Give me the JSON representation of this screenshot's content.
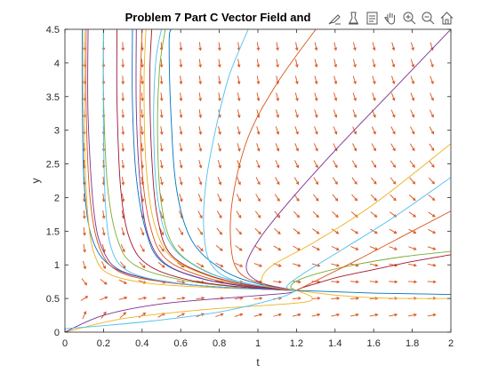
{
  "toolbar": {
    "buttons": [
      {
        "name": "brush-icon"
      },
      {
        "name": "datatip-icon"
      },
      {
        "name": "restore-view-icon"
      },
      {
        "name": "pan-hand-icon"
      },
      {
        "name": "zoom-in-icon"
      },
      {
        "name": "zoom-out-icon"
      },
      {
        "name": "home-icon"
      }
    ]
  },
  "chart_data": {
    "type": "line",
    "title": "Problem 7 Part C Vector Field and",
    "xlabel": "t",
    "ylabel": "y",
    "xlim": [
      0,
      2
    ],
    "ylim": [
      0,
      4.5
    ],
    "xticks": [
      0,
      0.2,
      0.4,
      0.6,
      0.8,
      1,
      1.2,
      1.4,
      1.6,
      1.8,
      2
    ],
    "yticks": [
      0,
      0.5,
      1,
      1.5,
      2,
      2.5,
      3,
      3.5,
      4,
      4.5
    ],
    "grid": false,
    "box": true,
    "vector_field": {
      "color": "#D95319",
      "t_samples": [
        0,
        0.1,
        0.2,
        0.3,
        0.4,
        0.5,
        0.6,
        0.7,
        0.8,
        0.9,
        1.0,
        1.1,
        1.2,
        1.3,
        1.4,
        1.5,
        1.6,
        1.7,
        1.8,
        1.9,
        2.0
      ],
      "y_samples": [
        0,
        0.25,
        0.5,
        0.75,
        1.0,
        1.25,
        1.5,
        1.75,
        2.0,
        2.25,
        2.5,
        2.75,
        3.0,
        3.25,
        3.5,
        3.75,
        4.0,
        4.25,
        4.5
      ]
    },
    "equilibrium_curve": {
      "t0": 1.2,
      "y0": 0.62
    },
    "series": [
      {
        "color": "#0072BD",
        "t": [
          0.09,
          0.09,
          0.1,
          0.14,
          0.24,
          0.45,
          0.75,
          1.2
        ],
        "y": [
          4.5,
          3.5,
          2.2,
          1.4,
          0.98,
          0.78,
          0.68,
          0.62
        ]
      },
      {
        "color": "#D95319",
        "t": [
          0.11,
          0.11,
          0.13,
          0.18,
          0.28,
          0.5,
          0.8,
          1.2
        ],
        "y": [
          4.5,
          3.3,
          2.0,
          1.25,
          0.9,
          0.75,
          0.67,
          0.62
        ]
      },
      {
        "color": "#EDB120",
        "t": [
          0.1,
          0.1,
          0.12,
          0.16,
          0.24,
          0.45,
          0.78,
          1.2
        ],
        "y": [
          4.5,
          3.0,
          1.7,
          1.1,
          0.85,
          0.72,
          0.66,
          0.62
        ]
      },
      {
        "color": "#7E2F8E",
        "t": [
          0.12,
          0.12,
          0.15,
          0.2,
          0.3,
          0.55,
          0.85,
          1.2
        ],
        "y": [
          4.5,
          3.2,
          1.8,
          1.2,
          0.9,
          0.74,
          0.66,
          0.62
        ]
      },
      {
        "color": "#77AC30",
        "t": [
          0.2,
          0.2,
          0.22,
          0.27,
          0.36,
          0.6,
          0.9,
          1.2
        ],
        "y": [
          4.5,
          3.5,
          2.2,
          1.4,
          1.0,
          0.78,
          0.67,
          0.62
        ]
      },
      {
        "color": "#4DBEEE",
        "t": [
          0.2,
          0.2,
          0.21,
          0.24,
          0.32,
          0.52,
          0.85,
          1.2
        ],
        "y": [
          4.5,
          3.0,
          1.9,
          1.25,
          0.92,
          0.75,
          0.66,
          0.62
        ]
      },
      {
        "color": "#A2142F",
        "t": [
          0.27,
          0.27,
          0.29,
          0.34,
          0.44,
          0.65,
          0.92,
          1.2
        ],
        "y": [
          4.5,
          3.4,
          2.1,
          1.35,
          0.98,
          0.77,
          0.67,
          0.62
        ]
      },
      {
        "color": "#0072BD",
        "t": [
          0.35,
          0.35,
          0.37,
          0.42,
          0.5,
          0.7,
          0.95,
          1.2
        ],
        "y": [
          4.5,
          3.4,
          2.3,
          1.5,
          1.05,
          0.8,
          0.68,
          0.62
        ]
      },
      {
        "color": "#D95319",
        "t": [
          0.4,
          0.39,
          0.4,
          0.44,
          0.52,
          0.72,
          0.97,
          1.2
        ],
        "y": [
          4.5,
          3.5,
          2.4,
          1.6,
          1.1,
          0.82,
          0.68,
          0.62
        ]
      },
      {
        "color": "#EDB120",
        "t": [
          0.42,
          0.41,
          0.42,
          0.46,
          0.55,
          0.75,
          0.98,
          1.2
        ],
        "y": [
          4.5,
          3.7,
          2.5,
          1.65,
          1.12,
          0.83,
          0.69,
          0.62
        ]
      },
      {
        "color": "#7E2F8E",
        "t": [
          0.37,
          0.37,
          0.39,
          0.43,
          0.52,
          0.72,
          0.96,
          1.2
        ],
        "y": [
          4.5,
          3.3,
          2.2,
          1.45,
          1.02,
          0.79,
          0.67,
          0.62
        ]
      },
      {
        "color": "#77AC30",
        "t": [
          0.52,
          0.49,
          0.48,
          0.5,
          0.57,
          0.75,
          0.98,
          1.2
        ],
        "y": [
          4.5,
          3.9,
          2.9,
          1.9,
          1.25,
          0.88,
          0.7,
          0.62
        ]
      },
      {
        "color": "#4DBEEE",
        "t": [
          0.5,
          0.47,
          0.46,
          0.48,
          0.55,
          0.73,
          0.97,
          1.2
        ],
        "y": [
          4.5,
          4.0,
          3.0,
          2.0,
          1.3,
          0.9,
          0.71,
          0.62
        ]
      },
      {
        "color": "#A2142F",
        "t": [
          0.45,
          0.44,
          0.45,
          0.48,
          0.55,
          0.74,
          0.97,
          1.2
        ],
        "y": [
          4.5,
          3.8,
          2.6,
          1.7,
          1.15,
          0.85,
          0.69,
          0.62
        ]
      },
      {
        "color": "#0072BD",
        "t": [
          0.55,
          0.54,
          0.55,
          0.58,
          0.66,
          0.82,
          1.0,
          1.2
        ],
        "y": [
          4.5,
          4.3,
          3.2,
          2.1,
          1.35,
          0.92,
          0.72,
          0.62
        ]
      },
      {
        "color": "#D95319",
        "t": [
          1.3,
          1.1,
          0.95,
          0.87,
          0.86,
          0.9,
          1.02,
          1.2
        ],
        "y": [
          4.5,
          3.7,
          2.9,
          2.0,
          1.3,
          0.9,
          0.72,
          0.62
        ]
      },
      {
        "color": "#4DBEEE",
        "t": [
          0.95,
          0.85,
          0.78,
          0.73,
          0.72,
          0.76,
          0.9,
          1.2
        ],
        "y": [
          4.5,
          3.8,
          3.0,
          2.2,
          1.5,
          1.0,
          0.75,
          0.62
        ]
      },
      {
        "color": "#7E2F8E",
        "t": [
          2.0,
          1.7,
          1.4,
          1.15,
          1.0,
          0.94,
          1.02,
          1.2
        ],
        "y": [
          4.5,
          3.6,
          2.7,
          1.9,
          1.35,
          0.95,
          0.73,
          0.62
        ]
      },
      {
        "color": "#EDB120",
        "t": [
          2.0,
          1.6,
          1.3,
          1.08,
          1.02,
          1.05,
          1.2
        ],
        "y": [
          2.8,
          1.9,
          1.35,
          1.0,
          0.8,
          0.68,
          0.62
        ]
      },
      {
        "color": "#4DBEEE",
        "t": [
          2.0,
          1.7,
          1.45,
          1.28,
          1.18,
          1.15,
          1.2
        ],
        "y": [
          2.3,
          1.7,
          1.25,
          0.95,
          0.76,
          0.66,
          0.62
        ]
      },
      {
        "color": "#77AC30",
        "t": [
          2.0,
          1.75,
          1.5,
          1.32,
          1.2,
          1.17,
          1.2
        ],
        "y": [
          1.2,
          1.12,
          1.0,
          0.88,
          0.76,
          0.67,
          0.62
        ]
      },
      {
        "color": "#A2142F",
        "t": [
          2.0,
          1.8,
          1.6,
          1.42,
          1.3,
          1.22,
          1.2
        ],
        "y": [
          1.15,
          1.05,
          0.93,
          0.82,
          0.72,
          0.65,
          0.62
        ]
      },
      {
        "color": "#EDB120",
        "t": [
          0.0,
          0.3,
          0.7,
          1.05,
          1.25,
          1.28,
          1.22,
          1.2
        ],
        "y": [
          0.0,
          0.2,
          0.33,
          0.4,
          0.45,
          0.52,
          0.6,
          0.62
        ]
      },
      {
        "color": "#7E2F8E",
        "t": [
          0.0,
          0.2,
          0.5,
          0.9,
          1.15,
          1.2
        ],
        "y": [
          0.0,
          0.25,
          0.42,
          0.52,
          0.58,
          0.62
        ]
      },
      {
        "color": "#4DBEEE",
        "t": [
          0.0,
          0.4,
          0.8,
          1.1,
          1.2
        ],
        "y": [
          0.05,
          0.15,
          0.3,
          0.5,
          0.62
        ]
      },
      {
        "color": "#EDB120",
        "t": [
          1.2,
          1.4,
          1.6,
          1.8,
          2.0
        ],
        "y": [
          0.62,
          0.55,
          0.51,
          0.5,
          0.5
        ]
      },
      {
        "color": "#0072BD",
        "t": [
          1.2,
          1.4,
          1.6,
          1.8,
          2.0
        ],
        "y": [
          0.62,
          0.6,
          0.58,
          0.57,
          0.56
        ]
      },
      {
        "color": "#D95319",
        "t": [
          1.2,
          1.5,
          1.8,
          2.0
        ],
        "y": [
          0.62,
          1.05,
          1.5,
          1.8
        ]
      }
    ]
  }
}
